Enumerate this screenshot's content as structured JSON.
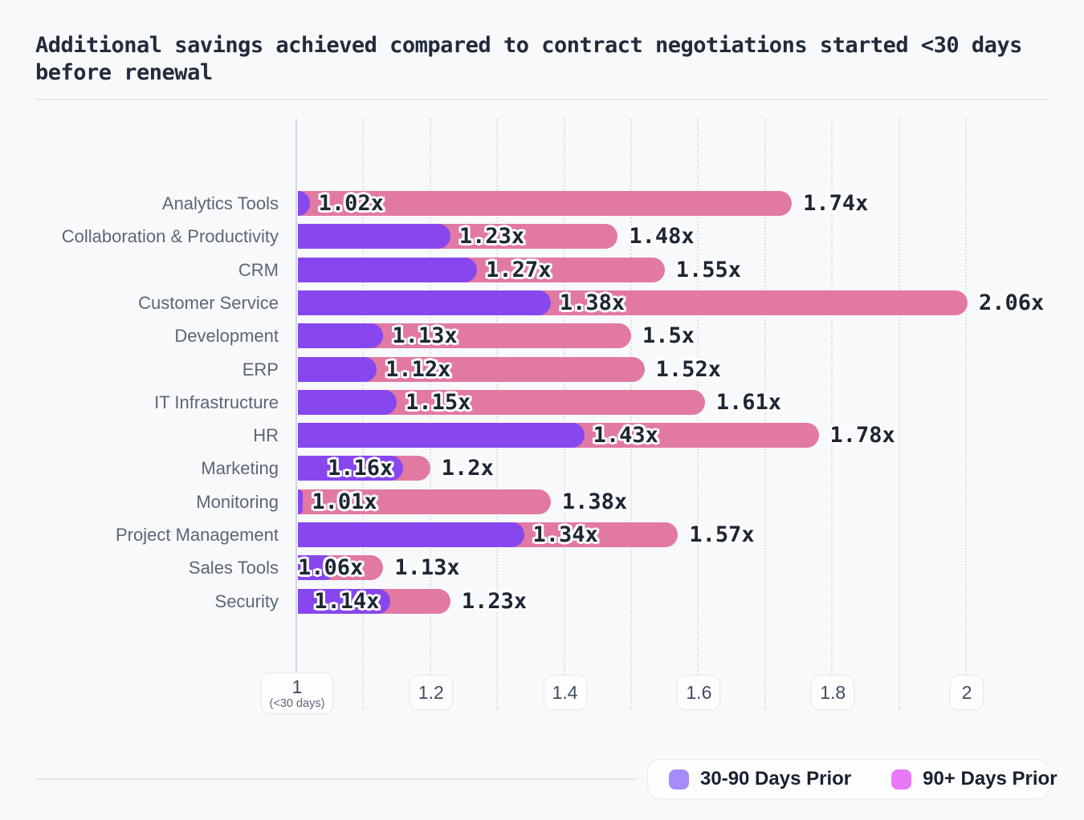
{
  "title": "Additional savings achieved compared to contract negotiations started <30 days before renewal",
  "chart_data": {
    "type": "bar",
    "orientation": "horizontal",
    "title": "Additional savings achieved compared to contract negotiations started <30 days before renewal",
    "value_suffix": "x",
    "categories": [
      "Analytics Tools",
      "Collaboration & Productivity",
      "CRM",
      "Customer Service",
      "Development",
      "ERP",
      "IT Infrastructure",
      "HR",
      "Marketing",
      "Monitoring",
      "Project Management",
      "Sales Tools",
      "Security"
    ],
    "series": [
      {
        "name": "30-90 Days Prior",
        "color": "#8847ee",
        "values": [
          1.02,
          1.23,
          1.27,
          1.38,
          1.13,
          1.12,
          1.15,
          1.43,
          1.16,
          1.01,
          1.34,
          1.06,
          1.14
        ],
        "labels": [
          "1.02x",
          "1.23x",
          "1.27x",
          "1.38x",
          "1.13x",
          "1.12x",
          "1.15x",
          "1.43x",
          "1.16x",
          "1.01x",
          "1.34x",
          "1.06x",
          "1.14x"
        ]
      },
      {
        "name": "90+ Days Prior",
        "color": "#e179a3",
        "values": [
          1.74,
          1.48,
          1.55,
          2.06,
          1.5,
          1.52,
          1.61,
          1.78,
          1.2,
          1.38,
          1.57,
          1.13,
          1.23
        ],
        "labels": [
          "1.74x",
          "1.48x",
          "1.55x",
          "2.06x",
          "1.5x",
          "1.52x",
          "1.61x",
          "1.78x",
          "1.2x",
          "1.38x",
          "1.57x",
          "1.13x",
          "1.23x"
        ]
      }
    ],
    "x_axis": {
      "min": 1,
      "max": 2.1,
      "tick_values": [
        1,
        1.2,
        1.4,
        1.6,
        1.8,
        2
      ],
      "tick_labels": [
        "1",
        "1.2",
        "1.4",
        "1.6",
        "1.8",
        "2"
      ],
      "first_tick_note": "(<30 days)",
      "grid": "dotted vertical gridlines every 0.1"
    },
    "legend": {
      "position": "bottom-right",
      "items": [
        {
          "label": "30-90 Days Prior",
          "color": "#a78bfa"
        },
        {
          "label": "90+ Days Prior",
          "color": "#e879f9"
        }
      ]
    }
  }
}
